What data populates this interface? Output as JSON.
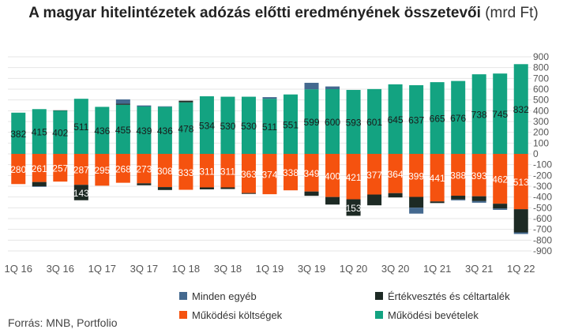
{
  "title": "A magyar hitelintézetek adózás előtti eredményének összetevői",
  "title_unit": "(mrd Ft)",
  "source": "Forrás: MNB, Portfolio",
  "colors": {
    "minden_egyeb": "#44698f",
    "ertekvesztes": "#1d2a24",
    "mukodesi_koltsegek": "#f5520f",
    "mukodesi_bevetelek": "#13a381",
    "grid": "#e6e6e6",
    "axis_text": "#555555"
  },
  "chart_data": {
    "type": "bar",
    "stacked": true,
    "categories": [
      "1Q 16",
      "2Q 16",
      "3Q 16",
      "4Q 16",
      "1Q 17",
      "2Q 17",
      "3Q 17",
      "4Q 17",
      "1Q 18",
      "2Q 18",
      "3Q 18",
      "4Q 18",
      "1Q 19",
      "2Q 19",
      "3Q 19",
      "4Q 19",
      "1Q 20",
      "2Q 20",
      "3Q 20",
      "4Q 20",
      "1Q 21",
      "2Q 21",
      "3Q 21",
      "4Q 21",
      "1Q 22"
    ],
    "x_tick_labels": [
      "1Q 16",
      "3Q 16",
      "1Q 17",
      "3Q 17",
      "1Q 18",
      "3Q 18",
      "1Q 19",
      "3Q 19",
      "1Q 20",
      "3Q 20",
      "1Q 21",
      "3Q 21",
      "1Q 22"
    ],
    "ylim": [
      -900,
      900
    ],
    "y_ticks": [
      900,
      800,
      700,
      600,
      500,
      400,
      300,
      200,
      100,
      0,
      -100,
      -200,
      -300,
      -400,
      -500,
      -600,
      -700,
      -800,
      -900
    ],
    "grid": true,
    "y_axis_position": "right",
    "series": [
      {
        "name": "Működési bevételek",
        "color_key": "mukodesi_bevetelek",
        "label_values": true,
        "values": [
          382,
          415,
          402,
          511,
          436,
          455,
          439,
          436,
          478,
          534,
          530,
          530,
          511,
          551,
          599,
          600,
          593,
          601,
          645,
          637,
          665,
          676,
          738,
          745,
          832
        ]
      },
      {
        "name": "Működési költségek",
        "color_key": "mukodesi_koltsegek",
        "label_values": true,
        "label_absolute": true,
        "values": [
          -280,
          -261,
          -257,
          -287,
          -295,
          -268,
          -273,
          -308,
          -333,
          -311,
          -311,
          -363,
          -374,
          -338,
          -349,
          -400,
          -421,
          -377,
          -364,
          -399,
          -441,
          -388,
          -393,
          -462,
          -513
        ]
      },
      {
        "name": "Értékvesztés és céltartalék",
        "color_key": "ertekvesztes",
        "values": [
          0,
          -40,
          2,
          -143,
          0,
          10,
          -18,
          -27,
          15,
          -18,
          -15,
          -8,
          0,
          0,
          -40,
          -70,
          -153,
          -100,
          -40,
          -100,
          -15,
          -35,
          -45,
          -45,
          -215
        ]
      },
      {
        "name": "Minden egyéb",
        "color_key": "minden_egyeb",
        "values": [
          0,
          -5,
          0,
          0,
          0,
          40,
          10,
          5,
          0,
          0,
          0,
          0,
          15,
          0,
          60,
          25,
          0,
          0,
          0,
          -55,
          0,
          -8,
          -15,
          -12,
          -15
        ]
      }
    ],
    "visible_labels_override": {
      "Értékvesztés és céltartalék": {
        "3": "143",
        "16": "153"
      }
    },
    "legend": {
      "placement": "bottom",
      "entries": [
        {
          "name": "Minden egyéb",
          "color_key": "minden_egyeb"
        },
        {
          "name": "Értékvesztés és céltartalék",
          "color_key": "ertekvesztes"
        },
        {
          "name": "Működési költségek",
          "color_key": "mukodesi_koltsegek"
        },
        {
          "name": "Működési bevételek",
          "color_key": "mukodesi_bevetelek"
        }
      ]
    }
  }
}
